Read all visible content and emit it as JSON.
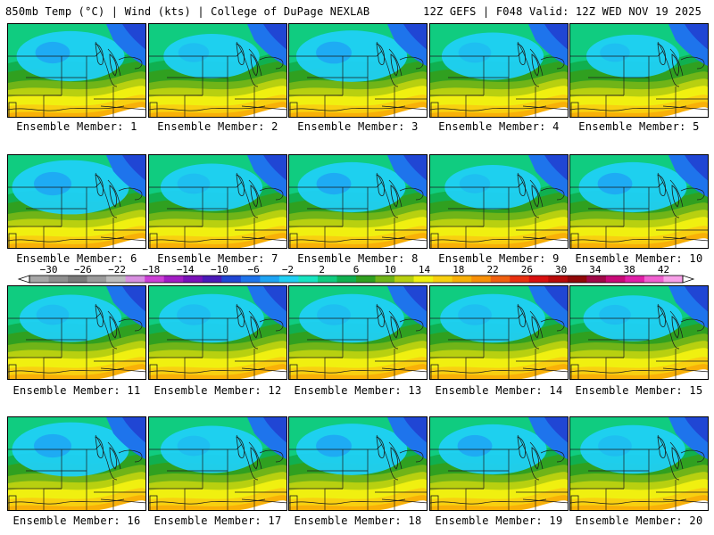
{
  "header": {
    "left": "850mb Temp (°C) | Wind (kts) | College of DuPage NEXLAB",
    "right": "12Z GEFS | F048 Valid: 12Z WED NOV 19 2025"
  },
  "colorbar": {
    "ticks": [
      -30,
      -26,
      -22,
      -18,
      -14,
      -10,
      -6,
      -2,
      2,
      6,
      10,
      14,
      18,
      22,
      26,
      30,
      34,
      38,
      42
    ],
    "colors": [
      "#a7a7a7",
      "#8f8f8f",
      "#7a7a7a",
      "#9b9b9b",
      "#bdbdbd",
      "#d88fe0",
      "#cc3fd6",
      "#a21dc4",
      "#7a12b8",
      "#4a1ab8",
      "#2046d4",
      "#1e74ec",
      "#1ea4f4",
      "#20d0f4",
      "#18e4c0",
      "#10cc80",
      "#10b050",
      "#30a020",
      "#70b418",
      "#b8d010",
      "#f0f010",
      "#f8d010",
      "#f8b008",
      "#f89008",
      "#f06010",
      "#e83010",
      "#d81010",
      "#b80a0a",
      "#900808",
      "#a00848",
      "#c80a78",
      "#e020a8",
      "#f060d0",
      "#f8a0e8"
    ]
  },
  "panels": [
    {
      "caption": "Ensemble Member: 1",
      "cold": 0.55
    },
    {
      "caption": "Ensemble Member: 2",
      "cold": 0.35
    },
    {
      "caption": "Ensemble Member: 3",
      "cold": 0.6
    },
    {
      "caption": "Ensemble Member: 4",
      "cold": 0.45
    },
    {
      "caption": "Ensemble Member: 5",
      "cold": 0.3
    },
    {
      "caption": "Ensemble Member: 6",
      "cold": 0.7
    },
    {
      "caption": "Ensemble Member: 7",
      "cold": 0.45
    },
    {
      "caption": "Ensemble Member: 8",
      "cold": 0.55
    },
    {
      "caption": "Ensemble Member: 9",
      "cold": 0.35
    },
    {
      "caption": "Ensemble Member: 10",
      "cold": 0.55
    },
    {
      "caption": "Ensemble Member: 11",
      "cold": 0.45
    },
    {
      "caption": "Ensemble Member: 12",
      "cold": 0.5
    },
    {
      "caption": "Ensemble Member: 13",
      "cold": 0.5
    },
    {
      "caption": "Ensemble Member: 14",
      "cold": 0.5
    },
    {
      "caption": "Ensemble Member: 15",
      "cold": 0.4
    },
    {
      "caption": "Ensemble Member: 16",
      "cold": 0.7
    },
    {
      "caption": "Ensemble Member: 17",
      "cold": 0.45
    },
    {
      "caption": "Ensemble Member: 18",
      "cold": 0.6
    },
    {
      "caption": "Ensemble Member: 19",
      "cold": 0.55
    },
    {
      "caption": "Ensemble Member: 20",
      "cold": 0.5
    }
  ]
}
